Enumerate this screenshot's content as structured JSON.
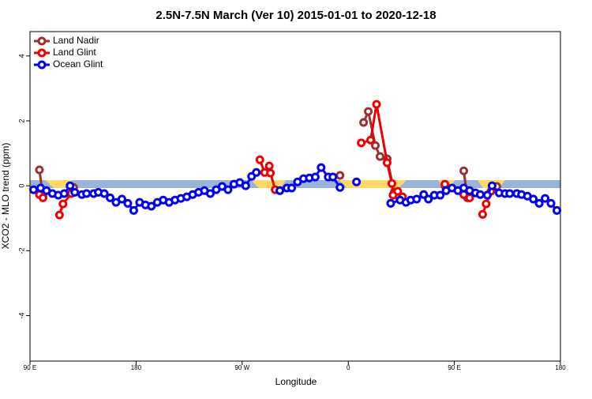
{
  "chart_data": {
    "type": "line",
    "title": "2.5N-7.5N March (Ver 10)   2015-01-01 to 2020-12-18",
    "x_label": "Longitude",
    "y_label": "XCO2 - MLO trend (ppm)",
    "xlim": [
      90,
      540
    ],
    "ylim": [
      -5.4,
      4.75
    ],
    "xticks": [
      {
        "value": 90,
        "label": "90 E"
      },
      {
        "value": 180,
        "label": "180"
      },
      {
        "value": 270,
        "label": "90 W"
      },
      {
        "value": 360,
        "label": "0"
      },
      {
        "value": 450,
        "label": "90 E"
      },
      {
        "value": 540,
        "label": "180"
      }
    ],
    "yticks": [
      -4,
      -2,
      0,
      2,
      4
    ],
    "legend_position": "top-left",
    "series": [
      {
        "name": "Land Nadir",
        "color": "#993333",
        "x": [
          98,
          101,
          null,
          127,
          null,
          353,
          null,
          373,
          377,
          383,
          387,
          393,
          399,
          403,
          null,
          442,
          null,
          458,
          461,
          null,
          486
        ],
        "values": [
          0.49,
          -0.32,
          null,
          -0.05,
          null,
          0.32,
          null,
          1.95,
          2.29,
          1.24,
          0.9,
          0.83,
          -0.2,
          -0.34,
          null,
          0,
          null,
          0.46,
          -0.37,
          null,
          -0.02
        ]
      },
      {
        "name": "Land Glint",
        "color": "#ee0000",
        "x": [
          98,
          101,
          null,
          115,
          118,
          125,
          null,
          285,
          289,
          293,
          294,
          298,
          null,
          371,
          379,
          384,
          393,
          397,
          398,
          402,
          406,
          null,
          442,
          null,
          458,
          463,
          null,
          474,
          477,
          481
        ],
        "values": [
          -0.27,
          -0.37,
          null,
          -0.9,
          -0.56,
          -0.24,
          null,
          0.8,
          0.41,
          0.61,
          0.39,
          -0.12,
          null,
          1.32,
          1.41,
          2.51,
          0.71,
          0.07,
          -0.29,
          -0.17,
          -0.34,
          null,
          0.05,
          null,
          -0.27,
          -0.37,
          null,
          -0.88,
          -0.56,
          -0.17
        ]
      },
      {
        "name": "Ocean Glint",
        "color": "#0000ee",
        "x": [
          93,
          99,
          104,
          109,
          114,
          119,
          124,
          128,
          134,
          138,
          144,
          148,
          153,
          158,
          163,
          168,
          173,
          178,
          183,
          188,
          193,
          198,
          203,
          208,
          213,
          218,
          223,
          228,
          233,
          238,
          243,
          248,
          253,
          258,
          263,
          268,
          273,
          278,
          282,
          null,
          302,
          308,
          312,
          317,
          322,
          327,
          332,
          337,
          343,
          347,
          353,
          null,
          367,
          null,
          396,
          404,
          409,
          413,
          418,
          424,
          428,
          433,
          438,
          443,
          448,
          453,
          458,
          463,
          468,
          472,
          478,
          482,
          488,
          493,
          497,
          503,
          507,
          512,
          517,
          522,
          527,
          532,
          537
        ],
        "values": [
          -0.12,
          -0.07,
          -0.15,
          -0.24,
          -0.29,
          -0.24,
          0,
          -0.2,
          -0.27,
          -0.24,
          -0.24,
          -0.2,
          -0.24,
          -0.37,
          -0.51,
          -0.41,
          -0.54,
          -0.76,
          -0.51,
          -0.59,
          -0.63,
          -0.51,
          -0.44,
          -0.51,
          -0.44,
          -0.39,
          -0.34,
          -0.27,
          -0.2,
          -0.15,
          -0.24,
          -0.12,
          -0.02,
          -0.12,
          0.05,
          0.1,
          0,
          0.29,
          0.41,
          null,
          -0.15,
          -0.07,
          -0.07,
          0.12,
          0.22,
          0.24,
          0.27,
          0.56,
          0.27,
          0.27,
          -0.05,
          null,
          0.12,
          null,
          -0.54,
          -0.44,
          -0.51,
          -0.44,
          -0.41,
          -0.27,
          -0.41,
          -0.29,
          -0.29,
          -0.15,
          -0.07,
          -0.15,
          -0.07,
          -0.15,
          -0.22,
          -0.27,
          -0.29,
          0,
          -0.22,
          -0.24,
          -0.24,
          -0.24,
          -0.27,
          -0.32,
          -0.41,
          -0.54,
          -0.39,
          -0.54,
          -0.76
        ]
      }
    ]
  }
}
